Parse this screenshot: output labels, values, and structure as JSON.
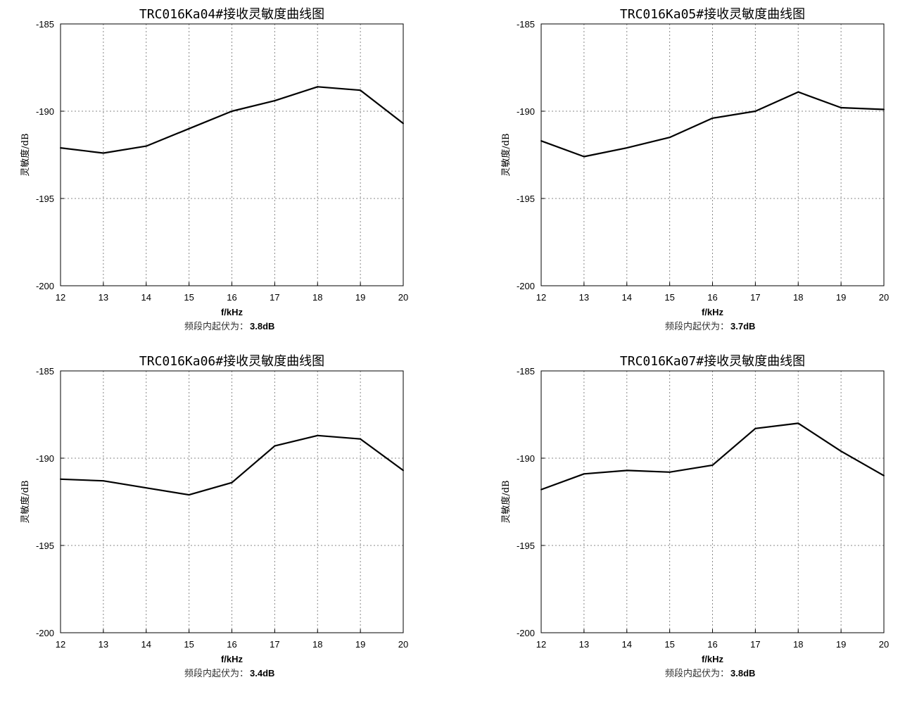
{
  "chart_data": [
    {
      "type": "line",
      "title": "TRC016Ka04#接收灵敏度曲线图",
      "xlabel": "f/kHz",
      "ylabel": "灵敏度/dB",
      "x": [
        12,
        13,
        14,
        15,
        16,
        17,
        18,
        19,
        20
      ],
      "values": [
        -192.1,
        -192.4,
        -192.0,
        -191.0,
        -190.0,
        -189.4,
        -188.6,
        -188.8,
        -190.7
      ],
      "xlim": [
        12,
        20
      ],
      "ylim": [
        -200,
        -185
      ],
      "xticks": [
        "12",
        "13",
        "14",
        "15",
        "16",
        "17",
        "18",
        "19",
        "20"
      ],
      "yticks": [
        "-185",
        "-190",
        "-195",
        "-200"
      ],
      "grid": true,
      "note_label": "频段内起伏为：",
      "note_value": "3.8dB"
    },
    {
      "type": "line",
      "title": "TRC016Ka05#接收灵敏度曲线图",
      "xlabel": "f/kHz",
      "ylabel": "灵敏度/dB",
      "x": [
        12,
        13,
        14,
        15,
        16,
        17,
        18,
        19,
        20
      ],
      "values": [
        -191.7,
        -192.6,
        -192.1,
        -191.5,
        -190.4,
        -190.0,
        -188.9,
        -189.8,
        -189.9
      ],
      "xlim": [
        12,
        20
      ],
      "ylim": [
        -200,
        -185
      ],
      "xticks": [
        "12",
        "13",
        "14",
        "15",
        "16",
        "17",
        "18",
        "19",
        "20"
      ],
      "yticks": [
        "-185",
        "-190",
        "-195",
        "-200"
      ],
      "grid": true,
      "note_label": "频段内起伏为：",
      "note_value": "3.7dB"
    },
    {
      "type": "line",
      "title": "TRC016Ka06#接收灵敏度曲线图",
      "xlabel": "f/kHz",
      "ylabel": "灵敏度/dB",
      "x": [
        12,
        13,
        14,
        15,
        16,
        17,
        18,
        19,
        20
      ],
      "values": [
        -191.2,
        -191.3,
        -191.7,
        -192.1,
        -191.4,
        -189.3,
        -188.7,
        -188.9,
        -190.7
      ],
      "xlim": [
        12,
        20
      ],
      "ylim": [
        -200,
        -185
      ],
      "xticks": [
        "12",
        "13",
        "14",
        "15",
        "16",
        "17",
        "18",
        "19",
        "20"
      ],
      "yticks": [
        "-185",
        "-190",
        "-195",
        "-200"
      ],
      "grid": true,
      "note_label": "频段内起伏为：",
      "note_value": "3.4dB"
    },
    {
      "type": "line",
      "title": "TRC016Ka07#接收灵敏度曲线图",
      "xlabel": "f/kHz",
      "ylabel": "灵敏度/dB",
      "x": [
        12,
        13,
        14,
        15,
        16,
        17,
        18,
        19,
        20
      ],
      "values": [
        -191.8,
        -190.9,
        -190.7,
        -190.8,
        -190.4,
        -188.3,
        -188.0,
        -189.6,
        -191.0
      ],
      "xlim": [
        12,
        20
      ],
      "ylim": [
        -200,
        -185
      ],
      "xticks": [
        "12",
        "13",
        "14",
        "15",
        "16",
        "17",
        "18",
        "19",
        "20"
      ],
      "yticks": [
        "-185",
        "-190",
        "-195",
        "-200"
      ],
      "grid": true,
      "note_label": "频段内起伏为：",
      "note_value": "3.8dB"
    }
  ]
}
